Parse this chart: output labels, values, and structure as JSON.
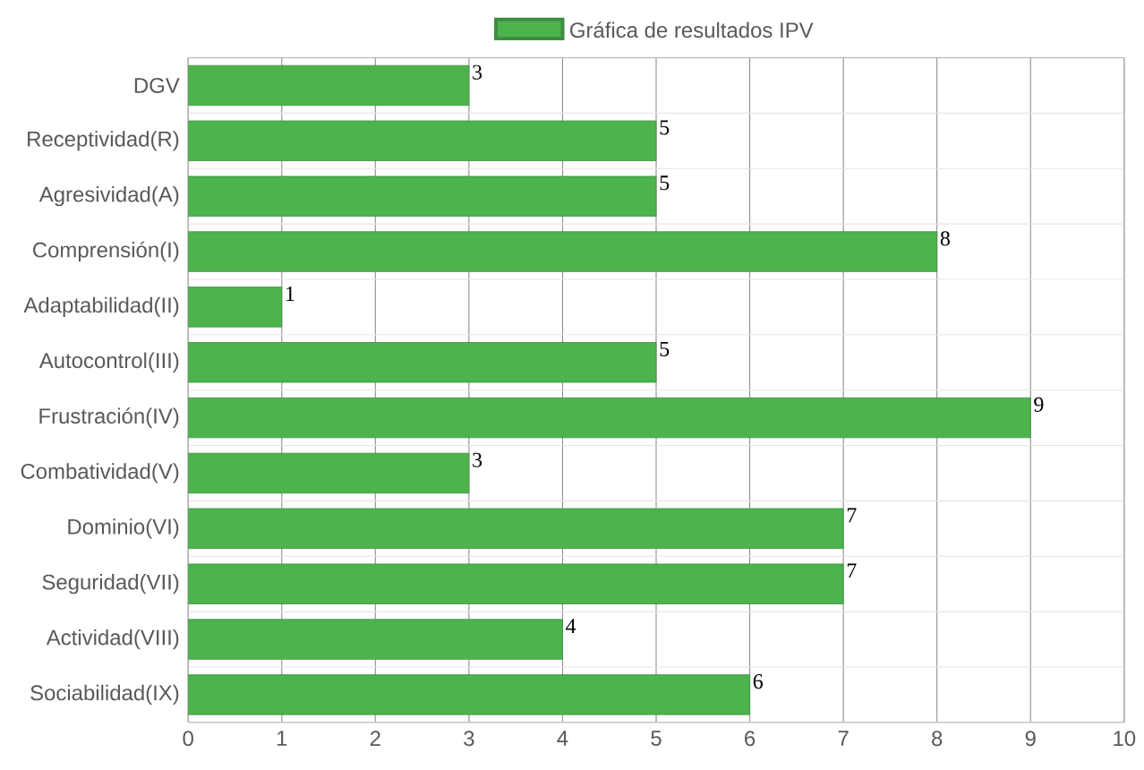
{
  "chart_data": {
    "type": "bar",
    "orientation": "horizontal",
    "categories": [
      "DGV",
      "Receptividad(R)",
      "Agresividad(A)",
      "Comprensión(I)",
      "Adaptabilidad(II)",
      "Autocontrol(III)",
      "Frustración(IV)",
      "Combatividad(V)",
      "Dominio(VI)",
      "Seguridad(VII)",
      "Actividad(VIII)",
      "Sociabilidad(IX)"
    ],
    "series": [
      {
        "name": "Gráfica de resultados IPV",
        "color": "#4db34d",
        "values": [
          3,
          5,
          5,
          8,
          1,
          5,
          9,
          3,
          7,
          7,
          4,
          6
        ]
      }
    ],
    "xlim": [
      0,
      10
    ],
    "xticks": [
      0,
      1,
      2,
      3,
      4,
      5,
      6,
      7,
      8,
      9,
      10
    ],
    "grid": true,
    "legend": "top",
    "data_labels": true
  }
}
